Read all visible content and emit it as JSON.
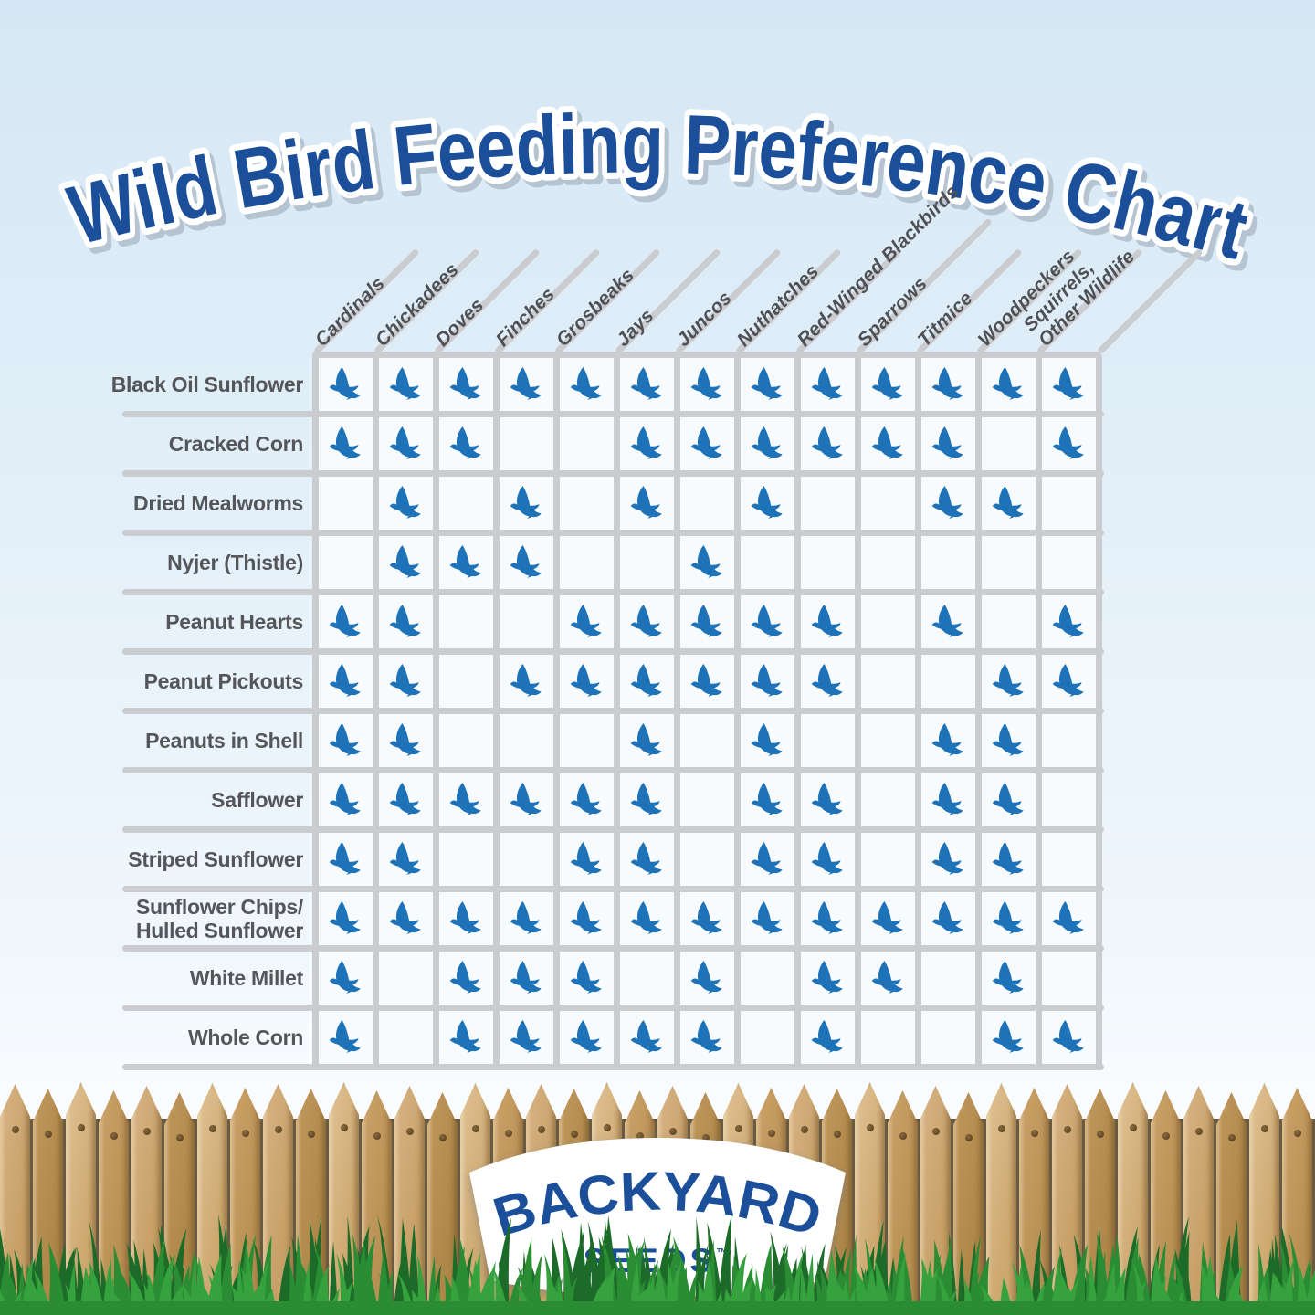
{
  "title": "Wild Bird Feeding Preference Chart",
  "logo": {
    "line1": "BACKYARD",
    "line2": "SEEDS",
    "trademark": "™"
  },
  "colors": {
    "title_blue": "#1c4f9a",
    "bird_blue": "#1e73b8",
    "grid_line": "#cacccf",
    "label_gray": "#54565a",
    "cell_bg": "#f8fbfe",
    "grass_front": "#36a23e",
    "grass_mid": "#2a8c33",
    "grass_back": "#1d6b28",
    "wood_gap": "#6a5a42"
  },
  "chart_data": {
    "type": "table",
    "title": "Wild Bird Feeding Preference Chart",
    "cell_symbol": "bird-icon",
    "symbol_meaning": "bird icon present = that bird/wildlife eats this food",
    "columns": [
      "Cardinals",
      "Chickadees",
      "Doves",
      "Finches",
      "Grosbeaks",
      "Jays",
      "Juncos",
      "Nuthatches",
      "Red-Winged Blackbirds",
      "Sparrows",
      "Titmice",
      "Woodpeckers",
      "Squirrels,\nOther Wildlife"
    ],
    "rows": [
      "Black Oil Sunflower",
      "Cracked Corn",
      "Dried Mealworms",
      "Nyjer (Thistle)",
      "Peanut Hearts",
      "Peanut Pickouts",
      "Peanuts in Shell",
      "Safflower",
      "Striped Sunflower",
      "Sunflower Chips/\nHulled Sunflower",
      "White Millet",
      "Whole Corn"
    ],
    "matrix": [
      [
        1,
        1,
        1,
        1,
        1,
        1,
        1,
        1,
        1,
        1,
        1,
        1,
        1
      ],
      [
        1,
        1,
        1,
        0,
        0,
        1,
        1,
        1,
        1,
        1,
        1,
        0,
        1
      ],
      [
        0,
        1,
        0,
        1,
        0,
        1,
        0,
        1,
        0,
        0,
        1,
        1,
        0
      ],
      [
        0,
        1,
        1,
        1,
        0,
        0,
        1,
        0,
        0,
        0,
        0,
        0,
        0
      ],
      [
        1,
        1,
        0,
        0,
        1,
        1,
        1,
        1,
        1,
        0,
        1,
        0,
        1
      ],
      [
        1,
        1,
        0,
        1,
        1,
        1,
        1,
        1,
        1,
        0,
        0,
        1,
        1
      ],
      [
        1,
        1,
        0,
        0,
        0,
        1,
        0,
        1,
        0,
        0,
        1,
        1,
        0
      ],
      [
        1,
        1,
        1,
        1,
        1,
        1,
        0,
        1,
        1,
        0,
        1,
        1,
        0
      ],
      [
        1,
        1,
        0,
        0,
        1,
        1,
        0,
        1,
        1,
        0,
        1,
        1,
        0
      ],
      [
        1,
        1,
        1,
        1,
        1,
        1,
        1,
        1,
        1,
        1,
        1,
        1,
        1
      ],
      [
        1,
        0,
        1,
        1,
        1,
        0,
        1,
        0,
        1,
        1,
        0,
        1,
        0
      ],
      [
        1,
        0,
        1,
        1,
        1,
        1,
        1,
        0,
        1,
        0,
        0,
        1,
        1
      ]
    ]
  }
}
